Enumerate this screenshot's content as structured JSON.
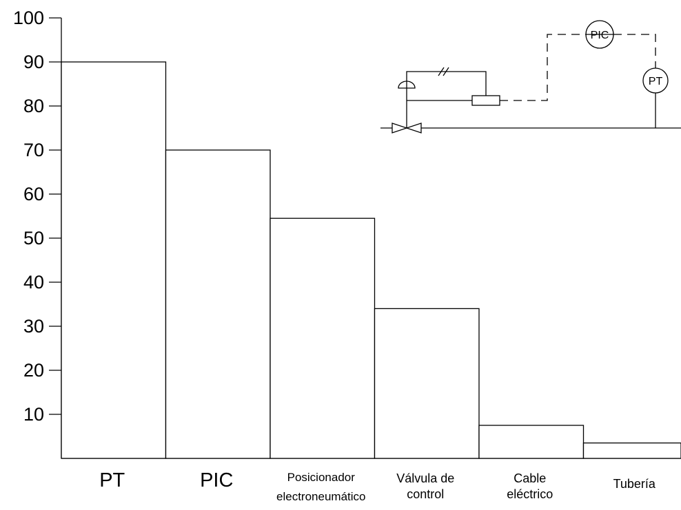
{
  "chart_data": {
    "type": "bar",
    "title": "",
    "xlabel": "",
    "ylabel": "",
    "ylim": [
      0,
      100
    ],
    "yticks": [
      10,
      20,
      30,
      40,
      50,
      60,
      70,
      80,
      90,
      100
    ],
    "ytick_labels": [
      "10",
      "20",
      "30",
      "40",
      "50",
      "60",
      "70",
      "80",
      "90",
      "100"
    ],
    "categories": [
      "PT",
      "PIC",
      "Posicionador electroneumático",
      "Válvula de control",
      "Cable eléctrico",
      "Tubería"
    ],
    "category_label_lines": [
      [
        "PT"
      ],
      [
        "PIC"
      ],
      [
        "Posicionador",
        "electroneumático"
      ],
      [
        "Válvula de",
        "control"
      ],
      [
        "Cable",
        "eléctrico"
      ],
      [
        "Tubería"
      ]
    ],
    "values": [
      90,
      70,
      54.5,
      34,
      7.5,
      3.5
    ],
    "grid": false,
    "legend": "none"
  },
  "diagram": {
    "instrument_labels": {
      "controller": "PIC",
      "transmitter": "PT"
    }
  }
}
